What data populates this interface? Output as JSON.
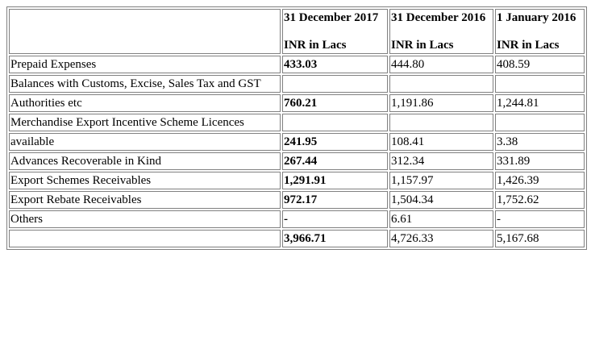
{
  "columns": [
    {
      "date": "31 December 2017",
      "unit": "INR in Lacs"
    },
    {
      "date": "31 December 2016",
      "unit": "INR in Lacs"
    },
    {
      "date": "1 January 2016",
      "unit": "INR in Lacs"
    }
  ],
  "rows": [
    {
      "label": "Prepaid Expenses",
      "v2017": "433.03",
      "v2016": "444.80",
      "vjan": "408.59"
    },
    {
      "label": "Balances with Customs, Excise, Sales Tax and GST",
      "v2017": "",
      "v2016": "",
      "vjan": ""
    },
    {
      "label": "Authorities etc",
      "v2017": "760.21",
      "v2016": "1,191.86",
      "vjan": "1,244.81"
    },
    {
      "label": "Merchandise Export Incentive Scheme Licences",
      "v2017": "",
      "v2016": "",
      "vjan": ""
    },
    {
      "label": "available",
      "v2017": "241.95",
      "v2016": "108.41",
      "vjan": "3.38"
    },
    {
      "label": "Advances Recoverable in Kind",
      "v2017": "267.44",
      "v2016": "312.34",
      "vjan": "331.89"
    },
    {
      "label": "Export Schemes Receivables",
      "v2017": "1,291.91",
      "v2016": "1,157.97",
      "vjan": "1,426.39"
    },
    {
      "label": "Export Rebate Receivables",
      "v2017": "972.17",
      "v2016": "1,504.34",
      "vjan": "1,752.62"
    },
    {
      "label": "Others",
      "v2017": "-",
      "v2016": "6.61",
      "vjan": "-"
    },
    {
      "label": "",
      "v2017": "3,966.71",
      "v2016": "4,726.33",
      "vjan": "5,167.68"
    }
  ]
}
